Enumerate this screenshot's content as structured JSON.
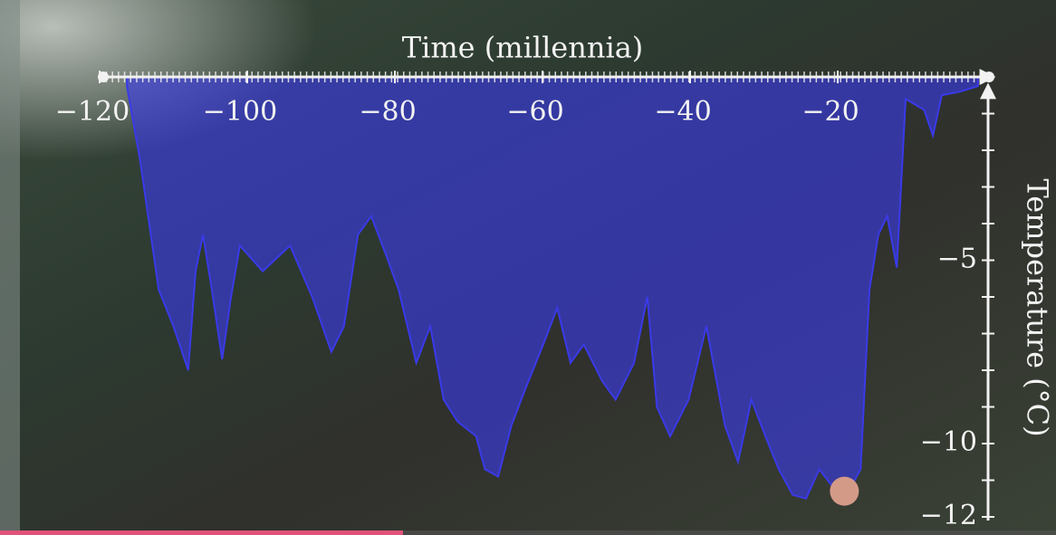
{
  "chart_data": {
    "type": "area",
    "xlabel": "Time (millennia)",
    "ylabel": "Temperature (°C)",
    "color": "#3a3ae8",
    "x": [
      -116.3,
      -114.5,
      -112,
      -110,
      -108,
      -107,
      -106,
      -104.8,
      -103.4,
      -102.2,
      -101,
      -97.9,
      -94.2,
      -91.2,
      -88.6,
      -86.9,
      -85,
      -83.2,
      -81.3,
      -79.5,
      -77.1,
      -75.2,
      -73.4,
      -71.5,
      -69,
      -67.8,
      -66,
      -64.2,
      -62.3,
      -59.9,
      -58,
      -56.2,
      -54.4,
      -51.9,
      -50.1,
      -47.6,
      -45.8,
      -44.5,
      -42.7,
      -40.2,
      -37.8,
      -35.3,
      -33.5,
      -31.7,
      -29.8,
      -28,
      -26.1,
      -24.3,
      -22.5,
      -20.6,
      -18.8,
      -16.9,
      -15.7,
      -14.5,
      -13.3,
      -12,
      -10.8,
      -8.3,
      -7.1,
      -5.9,
      -3.4,
      -1
    ],
    "values": [
      -0.25,
      -2.3,
      -5.8,
      -6.8,
      -8.0,
      -5.3,
      -4.3,
      -5.8,
      -7.7,
      -6.0,
      -4.6,
      -5.3,
      -4.6,
      -6.0,
      -7.5,
      -6.8,
      -4.3,
      -3.8,
      -4.8,
      -5.8,
      -7.8,
      -6.8,
      -8.8,
      -9.4,
      -9.8,
      -10.7,
      -10.9,
      -9.5,
      -8.5,
      -7.3,
      -6.3,
      -7.8,
      -7.3,
      -8.3,
      -8.8,
      -7.8,
      -6.0,
      -9.0,
      -9.8,
      -8.8,
      -6.8,
      -9.5,
      -10.5,
      -8.8,
      -9.8,
      -10.7,
      -11.4,
      -11.5,
      -10.7,
      -11.2,
      -11.4,
      -10.7,
      -5.8,
      -4.3,
      -3.8,
      -5.2,
      -0.6,
      -0.9,
      -1.6,
      -0.5,
      -0.4,
      -0.25
    ],
    "marker": {
      "x": -19.1,
      "y": -11.3,
      "color": "#d49a88"
    },
    "xlim": [
      -120,
      0
    ],
    "ylim": [
      -12,
      0
    ],
    "xticks": [
      {
        "value": -120,
        "label": "−120"
      },
      {
        "value": -100,
        "label": "−100"
      },
      {
        "value": -80,
        "label": "−80"
      },
      {
        "value": -60,
        "label": "−60"
      },
      {
        "value": -40,
        "label": "−40"
      },
      {
        "value": -20,
        "label": "−20"
      }
    ],
    "yticks": [
      {
        "value": -5,
        "label": "−5"
      },
      {
        "value": -10,
        "label": "−10"
      },
      {
        "value": -12,
        "label": "−12"
      }
    ],
    "yminorticks": [
      -1,
      -2,
      -3,
      -4,
      -6,
      -7,
      -8,
      -9,
      -11
    ]
  }
}
